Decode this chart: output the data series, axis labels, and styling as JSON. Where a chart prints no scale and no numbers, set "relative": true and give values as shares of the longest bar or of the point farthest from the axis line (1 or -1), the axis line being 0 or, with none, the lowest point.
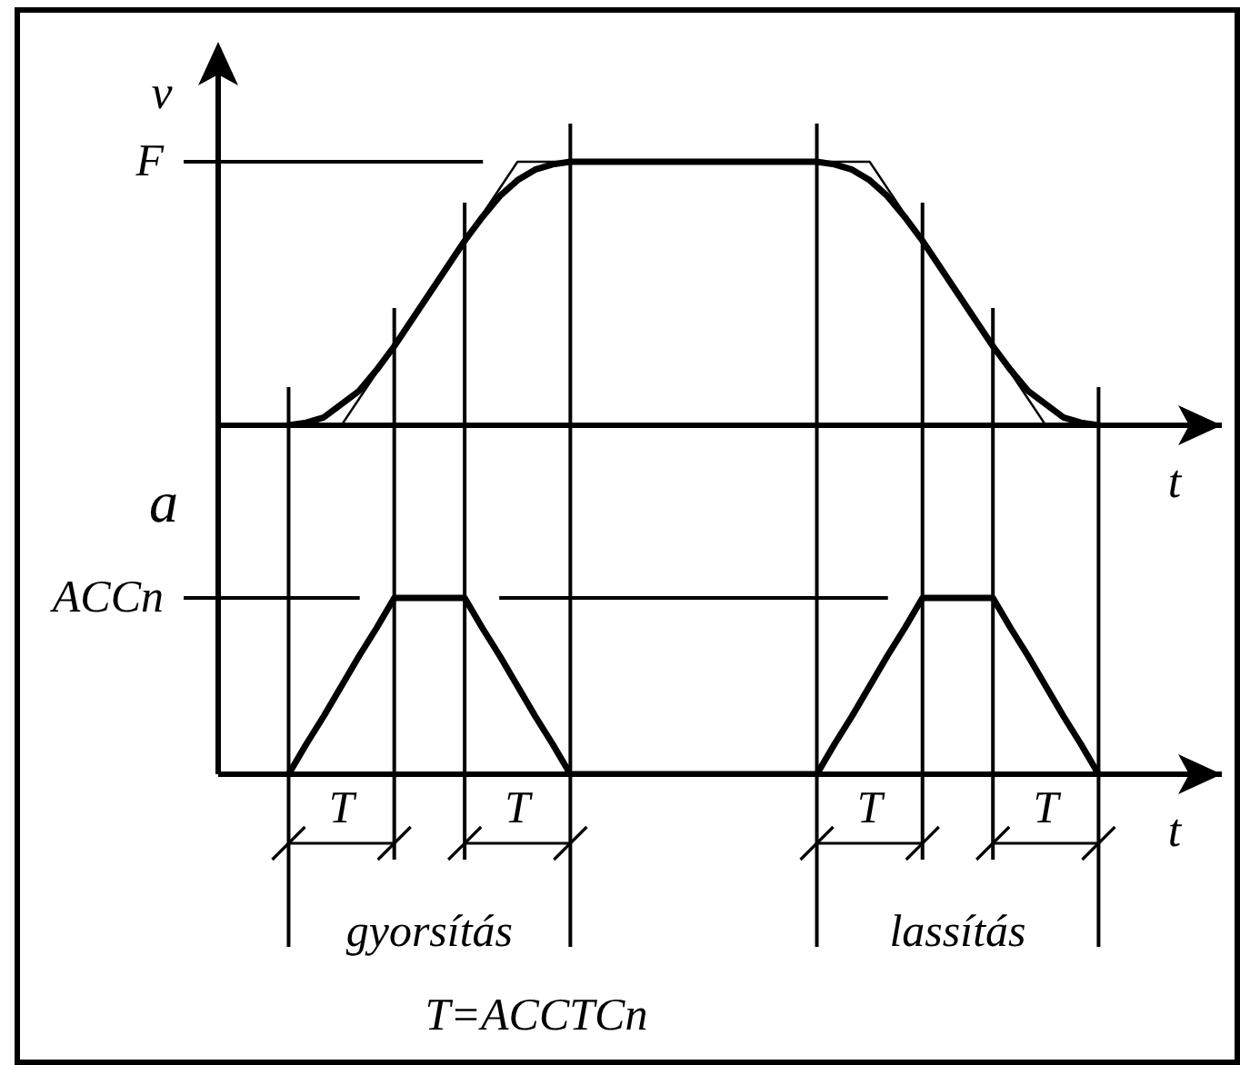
{
  "chart_data": [
    {
      "type": "line",
      "relative": true,
      "ylabel": "v",
      "xlabel": "t",
      "categories": [
        null,
        null,
        null,
        null,
        null,
        null,
        null,
        null,
        null,
        null,
        null,
        null,
        null,
        null,
        null,
        null,
        null,
        null,
        null,
        null,
        null,
        null,
        null,
        null,
        null,
        null,
        null,
        null,
        null,
        null,
        null,
        null,
        null,
        null,
        null,
        null,
        null,
        null,
        null,
        null,
        null,
        null,
        null,
        null,
        null,
        null,
        null,
        null,
        null,
        null,
        null,
        null,
        null,
        null,
        null,
        null,
        null,
        null
      ],
      "series": [
        {
          "color": "#000000",
          "values": [
            null,
            null,
            null,
            null,
            0,
            0.01,
            0.03,
            0.08,
            0.13,
            0.21,
            0.3,
            0.4,
            0.5,
            0.6,
            0.7,
            0.79,
            0.87,
            0.93,
            0.97,
            0.99,
            1,
            1,
            1,
            1,
            1,
            1,
            1,
            1,
            1,
            1,
            1,
            1,
            1,
            1,
            1,
            0.99,
            0.97,
            0.93,
            0.87,
            0.79,
            0.7,
            0.6,
            0.5,
            0.4,
            0.3,
            0.21,
            0.13,
            0.08,
            0.03,
            0.01,
            0,
            null,
            null,
            null,
            null,
            null,
            null,
            null
          ]
        },
        {
          "color": "#000000",
          "values": [
            null,
            null,
            null,
            null,
            null,
            null,
            null,
            0,
            0.1,
            0.2,
            0.3,
            0.4,
            0.5,
            0.6,
            0.7,
            0.8,
            0.9,
            1,
            1,
            1,
            1,
            null,
            null,
            null,
            null,
            null,
            null,
            null,
            null,
            null,
            null,
            null,
            null,
            null,
            1,
            1,
            1,
            1,
            0.9,
            0.8,
            0.7,
            0.6,
            0.5,
            0.4,
            0.3,
            0.2,
            0.1,
            0,
            null,
            null,
            null,
            null,
            null,
            null,
            null,
            null,
            null,
            null
          ]
        }
      ],
      "ref_lines": [
        {
          "axis": "y",
          "value": 1,
          "label": "F"
        }
      ]
    },
    {
      "type": "line",
      "relative": true,
      "ylabel": "a",
      "xlabel": "t",
      "grid": "x",
      "categories": [
        null,
        null,
        null,
        null,
        null,
        null,
        null,
        null,
        null,
        null,
        null,
        null,
        null,
        null,
        null,
        null,
        null,
        null,
        null,
        null,
        null,
        null,
        null,
        null,
        null,
        null,
        null,
        null,
        null,
        null,
        null,
        null,
        null,
        null,
        null,
        null,
        null,
        null,
        null,
        null,
        null,
        null,
        null,
        null,
        null,
        null,
        null,
        null,
        null,
        null,
        null,
        null,
        null,
        null,
        null,
        null,
        null,
        null
      ],
      "series": [
        {
          "color": "#000000",
          "values": [
            null,
            null,
            null,
            null,
            0,
            0.17,
            0.33,
            0.5,
            0.67,
            0.83,
            1,
            1,
            1,
            1,
            1,
            0.83,
            0.67,
            0.5,
            0.33,
            0.17,
            0,
            0,
            0,
            0,
            0,
            0,
            0,
            0,
            0,
            0,
            0,
            0,
            0,
            0,
            0,
            0.17,
            0.33,
            0.5,
            0.67,
            0.83,
            1,
            1,
            1,
            1,
            1,
            0.83,
            0.67,
            0.5,
            0.33,
            0.17,
            0,
            null,
            null,
            null,
            null,
            null,
            null,
            null
          ]
        }
      ],
      "ref_lines": [
        {
          "axis": "y",
          "value": 1,
          "label": "ACCn"
        }
      ],
      "annotations": [
        "T",
        "T",
        "T",
        "T",
        "gyorsítás",
        "lassítás",
        "T=ACCTCn"
      ]
    }
  ]
}
